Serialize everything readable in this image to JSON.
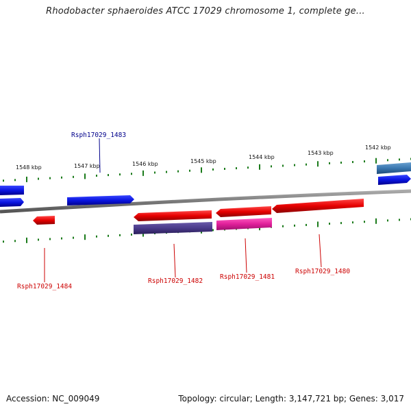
{
  "title": "Rhodobacter sphaeroides ATCC 17029 chromosome 1, complete ge...",
  "footer": {
    "accession": "Accession: NC_009049",
    "topology": "Topology: circular; Length: 3,147,721 bp; Genes: 3,017"
  },
  "scale_labels": [
    "1548 kbp",
    "1547 kbp",
    "1546 kbp",
    "1545 kbp",
    "1544 kbp",
    "1543 kbp",
    "1542 kbp"
  ],
  "genes": [
    {
      "label": "Rsph17029_1483",
      "strand": "forward",
      "color": "#00008b"
    },
    {
      "label": "Rsph17029_1484",
      "strand": "reverse",
      "color": "#cc0000"
    },
    {
      "label": "Rsph17029_1482",
      "strand": "reverse",
      "color": "#cc0000"
    },
    {
      "label": "Rsph17029_1481",
      "strand": "reverse",
      "color": "#cc0000"
    },
    {
      "label": "Rsph17029_1480",
      "strand": "reverse",
      "color": "#cc0000"
    }
  ],
  "colors": {
    "forward_gene": "#0a14e0",
    "reverse_gene": "#e60000",
    "backbone": "#7a7a7a",
    "ticks": "#1a7a1a",
    "purple_feature": "#4a3a8a",
    "magenta_feature": "#e0209a",
    "steelblue_feature": "#3a78b0"
  }
}
